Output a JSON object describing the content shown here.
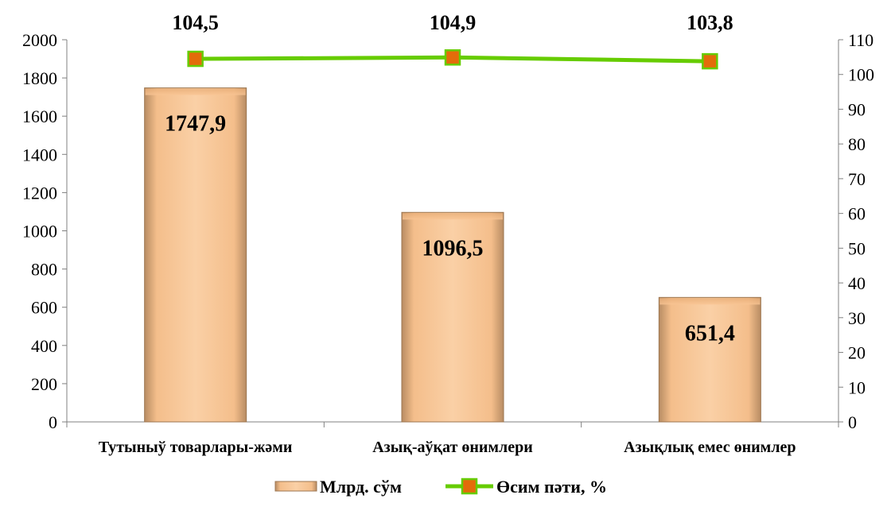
{
  "chart_data": {
    "type": "bar",
    "categories": [
      "Тутыныў товарлары-жәми",
      "Азық-аўқат өнимлери",
      "Азықлық емес өнимлер"
    ],
    "series": [
      {
        "name": "Млрд. сўм",
        "type": "bar",
        "axis": "left",
        "values": [
          1747.9,
          1096.5,
          651.4
        ],
        "labels": [
          "1747,9",
          "1096,5",
          "651,4"
        ],
        "color": "#F9C594"
      },
      {
        "name": "Өсим пәти, %",
        "type": "line",
        "axis": "right",
        "values": [
          104.5,
          104.9,
          103.8
        ],
        "labels": [
          "104,5",
          "104,9",
          "103,8"
        ],
        "color": "#66CC00",
        "marker_color": "#E36C0A"
      }
    ],
    "y_left": {
      "min": 0,
      "max": 2000,
      "step": 200,
      "ticks": [
        "0",
        "200",
        "400",
        "600",
        "800",
        "1000",
        "1200",
        "1400",
        "1600",
        "1800",
        "2000"
      ]
    },
    "y_right": {
      "min": 0,
      "max": 110,
      "step": 10,
      "ticks": [
        "0",
        "10",
        "20",
        "30",
        "40",
        "50",
        "60",
        "70",
        "80",
        "90",
        "100",
        "110"
      ]
    },
    "grid": false,
    "legend_position": "bottom"
  }
}
